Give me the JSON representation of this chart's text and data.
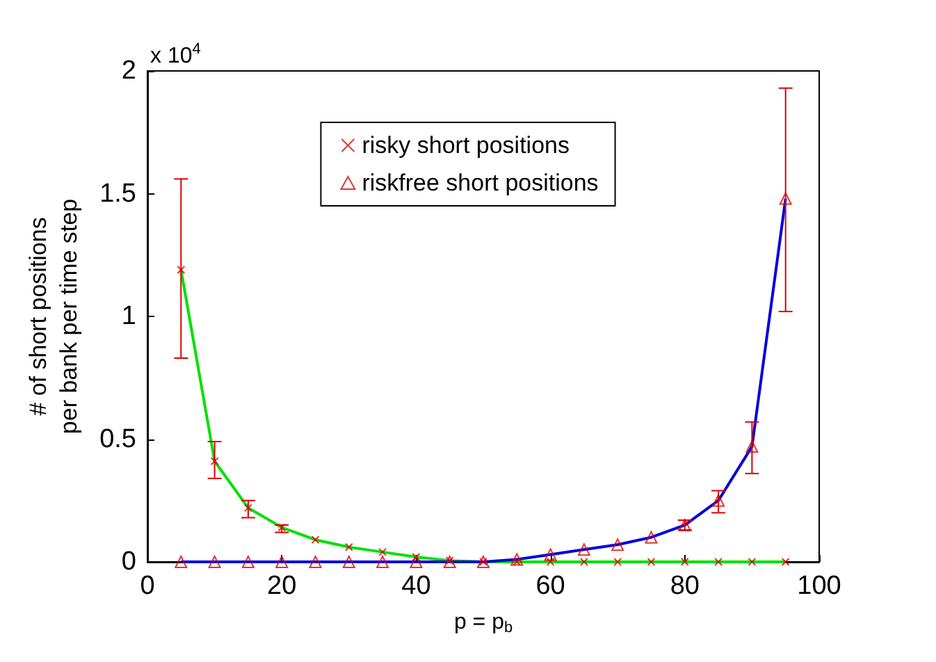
{
  "chart_data": {
    "type": "line",
    "xlabel": "p = p$_{b}$",
    "ylabel": "# of short positions\nper bank per time step",
    "annotations": [
      "x 10$^{4}$"
    ],
    "x": [
      5,
      10,
      15,
      20,
      25,
      30,
      35,
      40,
      45,
      50,
      55,
      60,
      65,
      70,
      75,
      80,
      85,
      90,
      95
    ],
    "xlim": [
      0,
      100
    ],
    "xticks": [
      0,
      20,
      40,
      60,
      80,
      100
    ],
    "ylim": [
      0,
      2
    ],
    "yticks": [
      0,
      0.5,
      1,
      1.5,
      2
    ],
    "grid": false,
    "legend": "top",
    "series": [
      {
        "color": "#00e000",
        "marker": "none",
        "values": [
          1.19,
          0.41,
          0.22,
          0.14,
          0.09,
          0.06,
          0.04,
          0.02,
          0.005,
          0,
          0,
          0,
          0,
          0,
          0,
          0,
          0,
          0,
          0
        ]
      },
      {
        "color": "#0000dd",
        "marker": "none",
        "values": [
          0,
          0,
          0,
          0,
          0,
          0,
          0,
          0,
          0,
          0,
          0.01,
          0.03,
          0.05,
          0.07,
          0.1,
          0.15,
          0.25,
          0.47,
          1.48
        ]
      },
      {
        "type": "scatter",
        "name": "risky short positions",
        "color": "#dd0000",
        "marker": "cross",
        "values": [
          1.19,
          0.41,
          0.22,
          0.14,
          0.09,
          0.06,
          0.04,
          0.02,
          0.005,
          0,
          0,
          0,
          0,
          0,
          0,
          0,
          0,
          0,
          0
        ],
        "errors": [
          [
            0.83,
            1.56
          ],
          [
            0.34,
            0.49
          ],
          [
            0.18,
            0.25
          ],
          [
            0.12,
            0.15
          ],
          null,
          null,
          null,
          null,
          null,
          null,
          null,
          null,
          null,
          null,
          null,
          null,
          null,
          null,
          null
        ]
      },
      {
        "type": "scatter",
        "name": "riskfree short positions",
        "color": "#dd0000",
        "marker": "triangle",
        "values": [
          0,
          0,
          0,
          0,
          0,
          0,
          0,
          0,
          0,
          0,
          0.01,
          0.03,
          0.05,
          0.07,
          0.1,
          0.15,
          0.25,
          0.47,
          1.48
        ],
        "errors": [
          null,
          null,
          null,
          null,
          null,
          null,
          null,
          null,
          null,
          null,
          null,
          null,
          null,
          null,
          null,
          [
            0.13,
            0.17
          ],
          [
            0.2,
            0.29
          ],
          [
            0.36,
            0.57
          ],
          [
            1.02,
            1.93
          ]
        ]
      }
    ]
  }
}
